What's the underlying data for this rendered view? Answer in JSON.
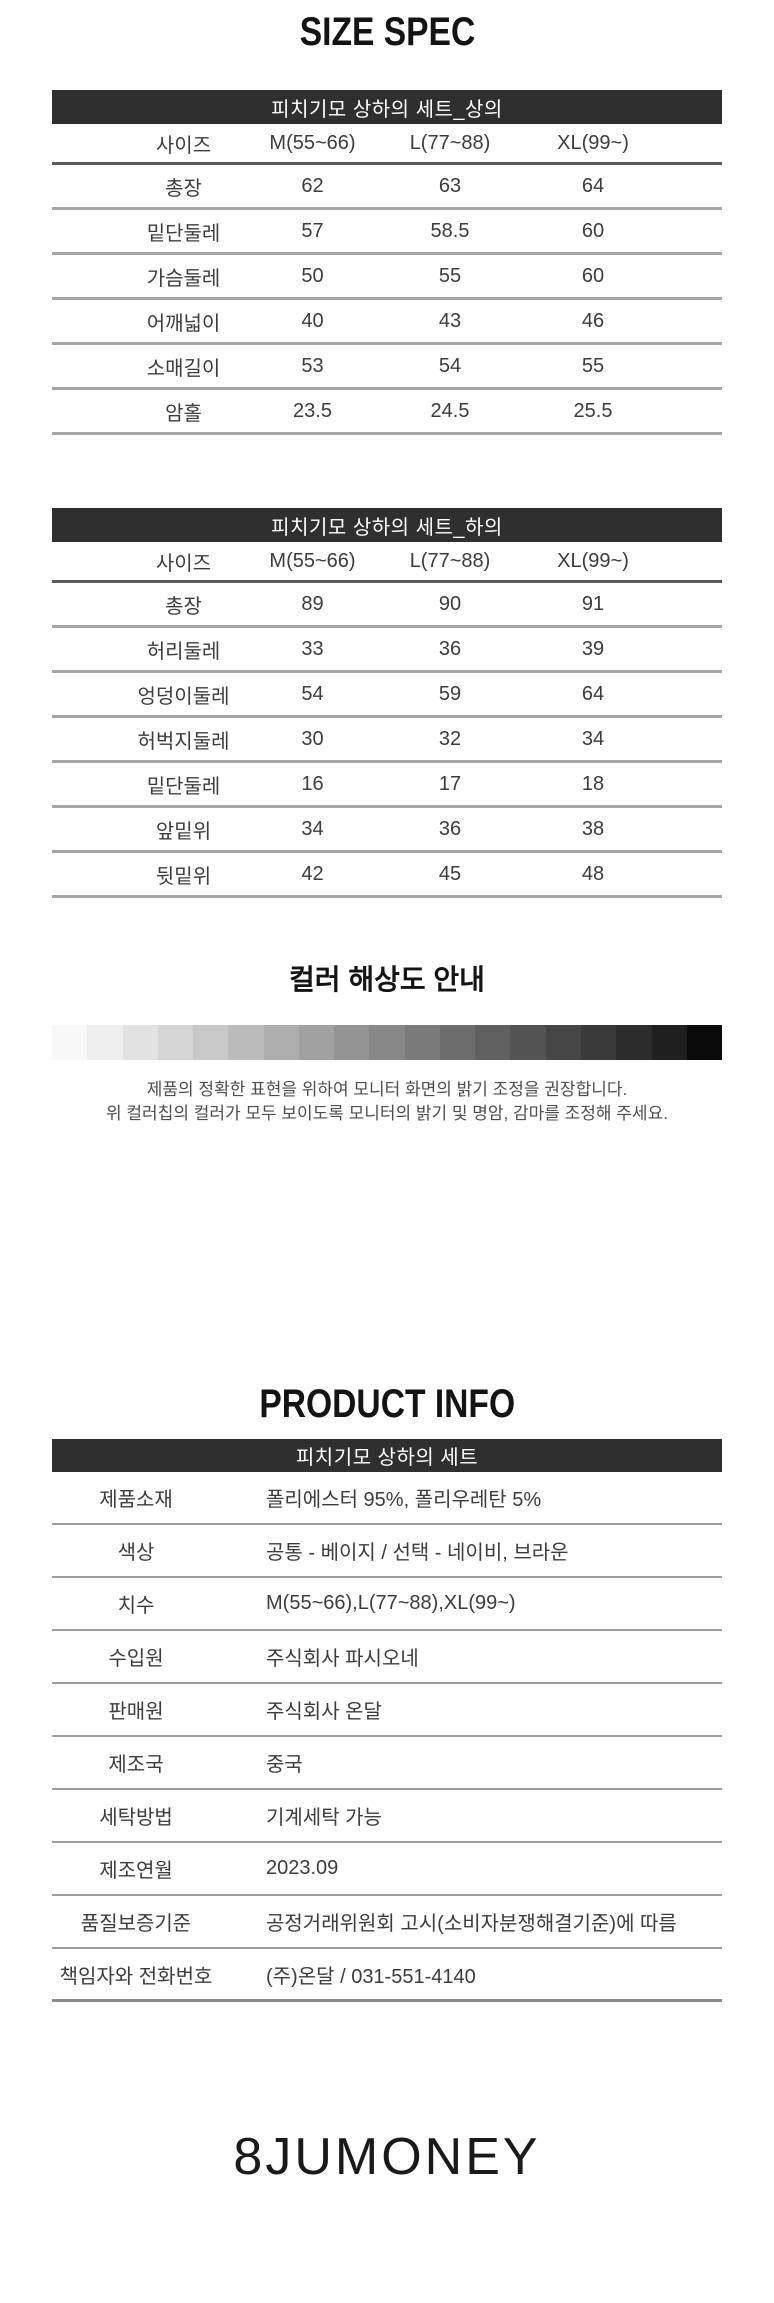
{
  "size_spec": {
    "title": "SIZE SPEC",
    "tables": [
      {
        "header": "피치기모 상하의 세트_상의",
        "columns": [
          "사이즈",
          "M(55~66)",
          "L(77~88)",
          "XL(99~)"
        ],
        "rows": [
          {
            "label": "총장",
            "values": [
              "62",
              "63",
              "64"
            ]
          },
          {
            "label": "밑단둘레",
            "values": [
              "57",
              "58.5",
              "60"
            ]
          },
          {
            "label": "가슴둘레",
            "values": [
              "50",
              "55",
              "60"
            ]
          },
          {
            "label": "어깨넓이",
            "values": [
              "40",
              "43",
              "46"
            ]
          },
          {
            "label": "소매길이",
            "values": [
              "53",
              "54",
              "55"
            ]
          },
          {
            "label": "암홀",
            "values": [
              "23.5",
              "24.5",
              "25.5"
            ]
          }
        ]
      },
      {
        "header": "피치기모 상하의 세트_하의",
        "columns": [
          "사이즈",
          "M(55~66)",
          "L(77~88)",
          "XL(99~)"
        ],
        "rows": [
          {
            "label": "총장",
            "values": [
              "89",
              "90",
              "91"
            ]
          },
          {
            "label": "허리둘레",
            "values": [
              "33",
              "36",
              "39"
            ]
          },
          {
            "label": "엉덩이둘레",
            "values": [
              "54",
              "59",
              "64"
            ]
          },
          {
            "label": "허벅지둘레",
            "values": [
              "30",
              "32",
              "34"
            ]
          },
          {
            "label": "밑단둘레",
            "values": [
              "16",
              "17",
              "18"
            ]
          },
          {
            "label": "앞밑위",
            "values": [
              "34",
              "36",
              "38"
            ]
          },
          {
            "label": "뒷밑위",
            "values": [
              "42",
              "45",
              "48"
            ]
          }
        ]
      }
    ]
  },
  "color_guide": {
    "title": "컬러 해상도 안내",
    "swatches": [
      "#f8f8f8",
      "#efefef",
      "#e2e2e2",
      "#d5d5d5",
      "#c8c8c8",
      "#bbbbbb",
      "#aeaeae",
      "#a1a1a1",
      "#949494",
      "#878787",
      "#7a7a7a",
      "#6d6d6d",
      "#606060",
      "#535353",
      "#464646",
      "#393939",
      "#2c2c2c",
      "#1f1f1f",
      "#0a0a0a"
    ],
    "lines": [
      "제품의 정확한 표현을 위하여 모니터 화면의 밝기 조정을 권장합니다.",
      "위 컬러칩의 컬러가 모두 보이도록 모니터의 밝기 및 명암, 감마를 조정해 주세요."
    ]
  },
  "product_info": {
    "title": "PRODUCT INFO",
    "header": "피치기모 상하의 세트",
    "rows": [
      {
        "label": "제품소재",
        "value": "폴리에스터 95%, 폴리우레탄 5%"
      },
      {
        "label": "색상",
        "value": "공통 - 베이지 / 선택 - 네이비, 브라운"
      },
      {
        "label": "치수",
        "value": "M(55~66),L(77~88),XL(99~)"
      },
      {
        "label": "수입원",
        "value": "주식회사 파시오네"
      },
      {
        "label": "판매원",
        "value": "주식회사 온달"
      },
      {
        "label": "제조국",
        "value": "중국"
      },
      {
        "label": "세탁방법",
        "value": "기계세탁 가능"
      },
      {
        "label": "제조연월",
        "value": "2023.09"
      },
      {
        "label": "품질보증기준",
        "value": "공정거래위원회 고시(소비자분쟁해결기준)에 따름"
      },
      {
        "label": "책임자와 전화번호",
        "value": "(주)온달 / 031-551-4140"
      }
    ]
  },
  "footer": {
    "logo": "8JUMONEY"
  },
  "colors": {
    "table_header_bg": "#2f2f2f",
    "table_header_text": "#ffffff",
    "body_text": "#3c3c3c",
    "separator": "#a6a6a6"
  }
}
